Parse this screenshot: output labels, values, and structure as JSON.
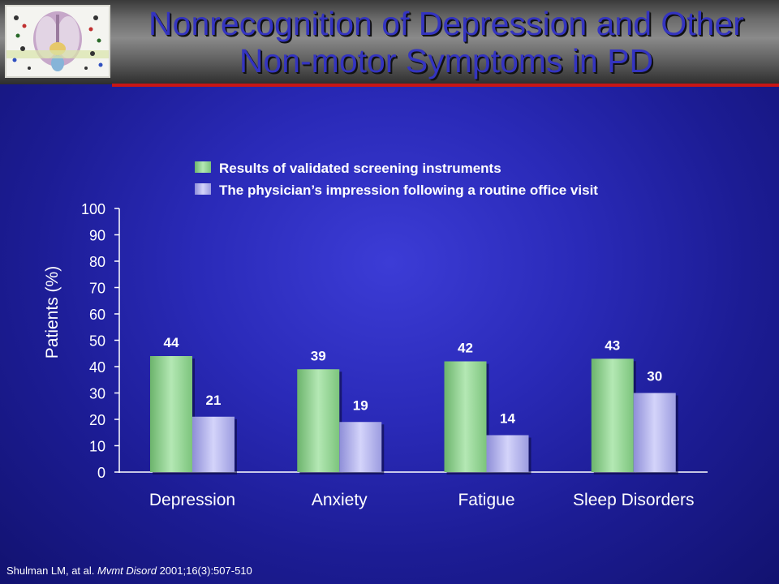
{
  "slide": {
    "title_line1": "Nonrecognition of Depression and Other",
    "title_line2": "Non-motor Symptoms in PD",
    "citation_authors": "Shulman LM, at al. ",
    "citation_journal": "Mvmt Disord",
    "citation_rest": " 2001;16(3):507-510"
  },
  "colors": {
    "series1": "#8ed08e",
    "series2": "#b0b0ec",
    "title": "#3434c0",
    "header_rule": "#c81616"
  },
  "chart_data": {
    "type": "bar",
    "categories": [
      "Depression",
      "Anxiety",
      "Fatigue",
      "Sleep Disorders"
    ],
    "series": [
      {
        "name": "Results of validated screening instruments",
        "values": [
          44,
          39,
          42,
          43
        ]
      },
      {
        "name": "The physician’s impression following a routine office visit",
        "values": [
          21,
          19,
          14,
          30
        ]
      }
    ],
    "ylabel": "Patients (%)",
    "xlabel": "",
    "ylim": [
      0,
      100
    ],
    "yticks": [
      0,
      10,
      20,
      30,
      40,
      50,
      60,
      70,
      80,
      90,
      100
    ],
    "legend": "top",
    "grid": false
  }
}
